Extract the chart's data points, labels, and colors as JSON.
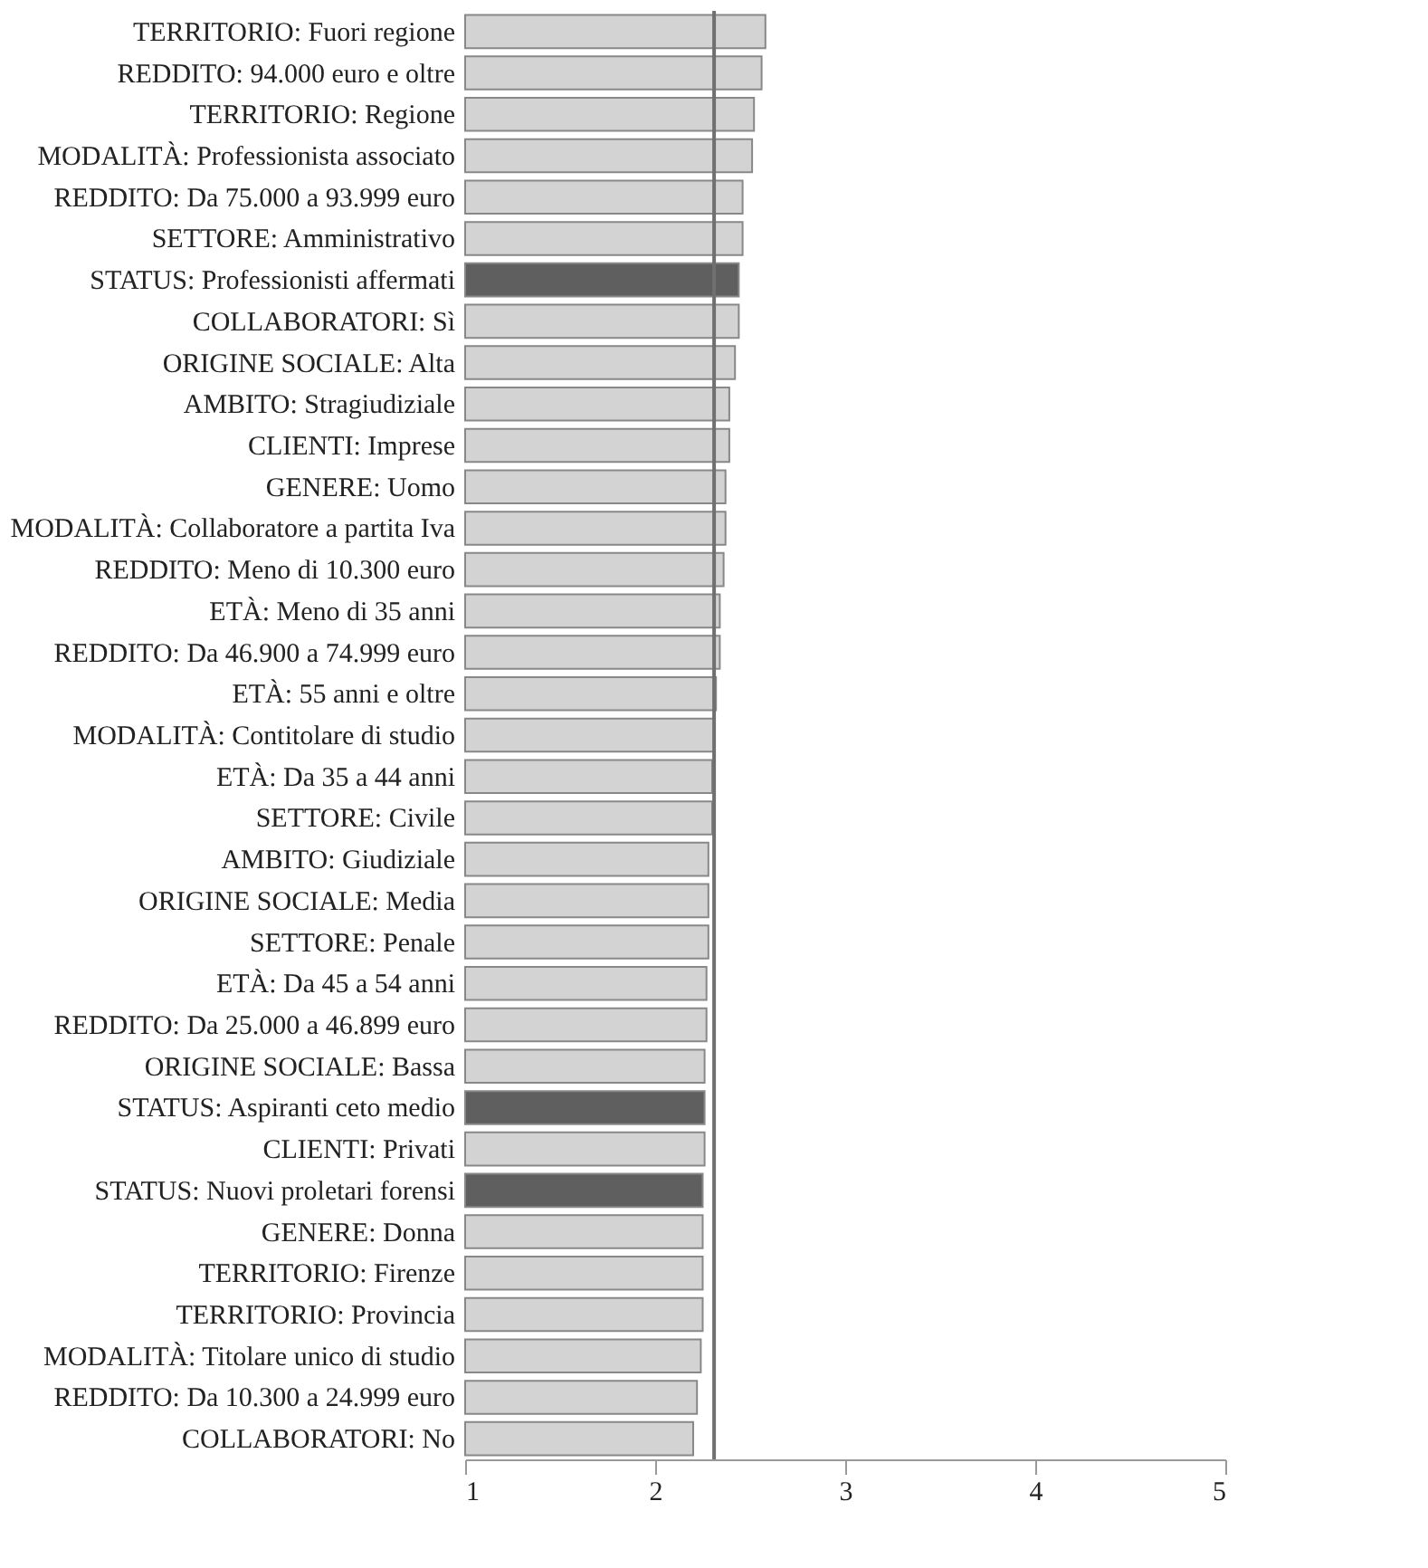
{
  "chart_data": {
    "type": "bar",
    "orientation": "horizontal",
    "categories": [
      "TERRITORIO: Fuori regione",
      "REDDITO: 94.000 euro e oltre",
      "TERRITORIO: Regione",
      "MODALITÀ: Professionista associato",
      "REDDITO: Da 75.000 a 93.999 euro",
      "SETTORE: Amministrativo",
      "STATUS: Professionisti affermati",
      "COLLABORATORI: Sì",
      "ORIGINE SOCIALE: Alta",
      "AMBITO: Stragiudiziale",
      "CLIENTI: Imprese",
      "GENERE: Uomo",
      "MODALITÀ: Collaboratore a partita Iva",
      "REDDITO: Meno di 10.300 euro",
      "ETÀ: Meno di 35 anni",
      "REDDITO: Da 46.900 a 74.999 euro",
      "ETÀ: 55 anni e oltre",
      "MODALITÀ: Contitolare di studio",
      "ETÀ: Da 35 a 44 anni",
      "SETTORE: Civile",
      "AMBITO: Giudiziale",
      "ORIGINE SOCIALE: Media",
      "SETTORE: Penale",
      "ETÀ: Da 45 a 54 anni",
      "REDDITO: Da 25.000 a 46.899 euro",
      "ORIGINE SOCIALE: Bassa",
      "STATUS: Aspiranti ceto medio",
      "CLIENTI: Privati",
      "STATUS: Nuovi proletari forensi",
      "GENERE: Donna",
      "TERRITORIO: Firenze",
      "TERRITORIO: Provincia",
      "MODALITÀ: Titolare unico di studio",
      "REDDITO: Da 10.300 a 24.999 euro",
      "COLLABORATORI: No"
    ],
    "values": [
      2.58,
      2.56,
      2.52,
      2.51,
      2.46,
      2.46,
      2.44,
      2.44,
      2.42,
      2.39,
      2.39,
      2.37,
      2.37,
      2.36,
      2.34,
      2.34,
      2.32,
      2.31,
      2.3,
      2.3,
      2.28,
      2.28,
      2.28,
      2.27,
      2.27,
      2.26,
      2.26,
      2.26,
      2.25,
      2.25,
      2.25,
      2.25,
      2.24,
      2.22,
      2.2
    ],
    "colors": [
      "#d3d3d3",
      "#d3d3d3",
      "#d3d3d3",
      "#d3d3d3",
      "#d3d3d3",
      "#d3d3d3",
      "#5f5f5f",
      "#d3d3d3",
      "#d3d3d3",
      "#d3d3d3",
      "#d3d3d3",
      "#d3d3d3",
      "#d3d3d3",
      "#d3d3d3",
      "#d3d3d3",
      "#d3d3d3",
      "#d3d3d3",
      "#d3d3d3",
      "#d3d3d3",
      "#d3d3d3",
      "#d3d3d3",
      "#d3d3d3",
      "#d3d3d3",
      "#d3d3d3",
      "#d3d3d3",
      "#d3d3d3",
      "#5f5f5f",
      "#d3d3d3",
      "#5f5f5f",
      "#d3d3d3",
      "#d3d3d3",
      "#d3d3d3",
      "#d3d3d3",
      "#d3d3d3",
      "#d3d3d3"
    ],
    "xlim": [
      1,
      5
    ],
    "xticks": [
      1,
      2,
      3,
      4,
      5
    ],
    "ref_lines": [
      {
        "axis": "x",
        "value": 2.31,
        "color": "#707070"
      }
    ],
    "grid": false
  }
}
